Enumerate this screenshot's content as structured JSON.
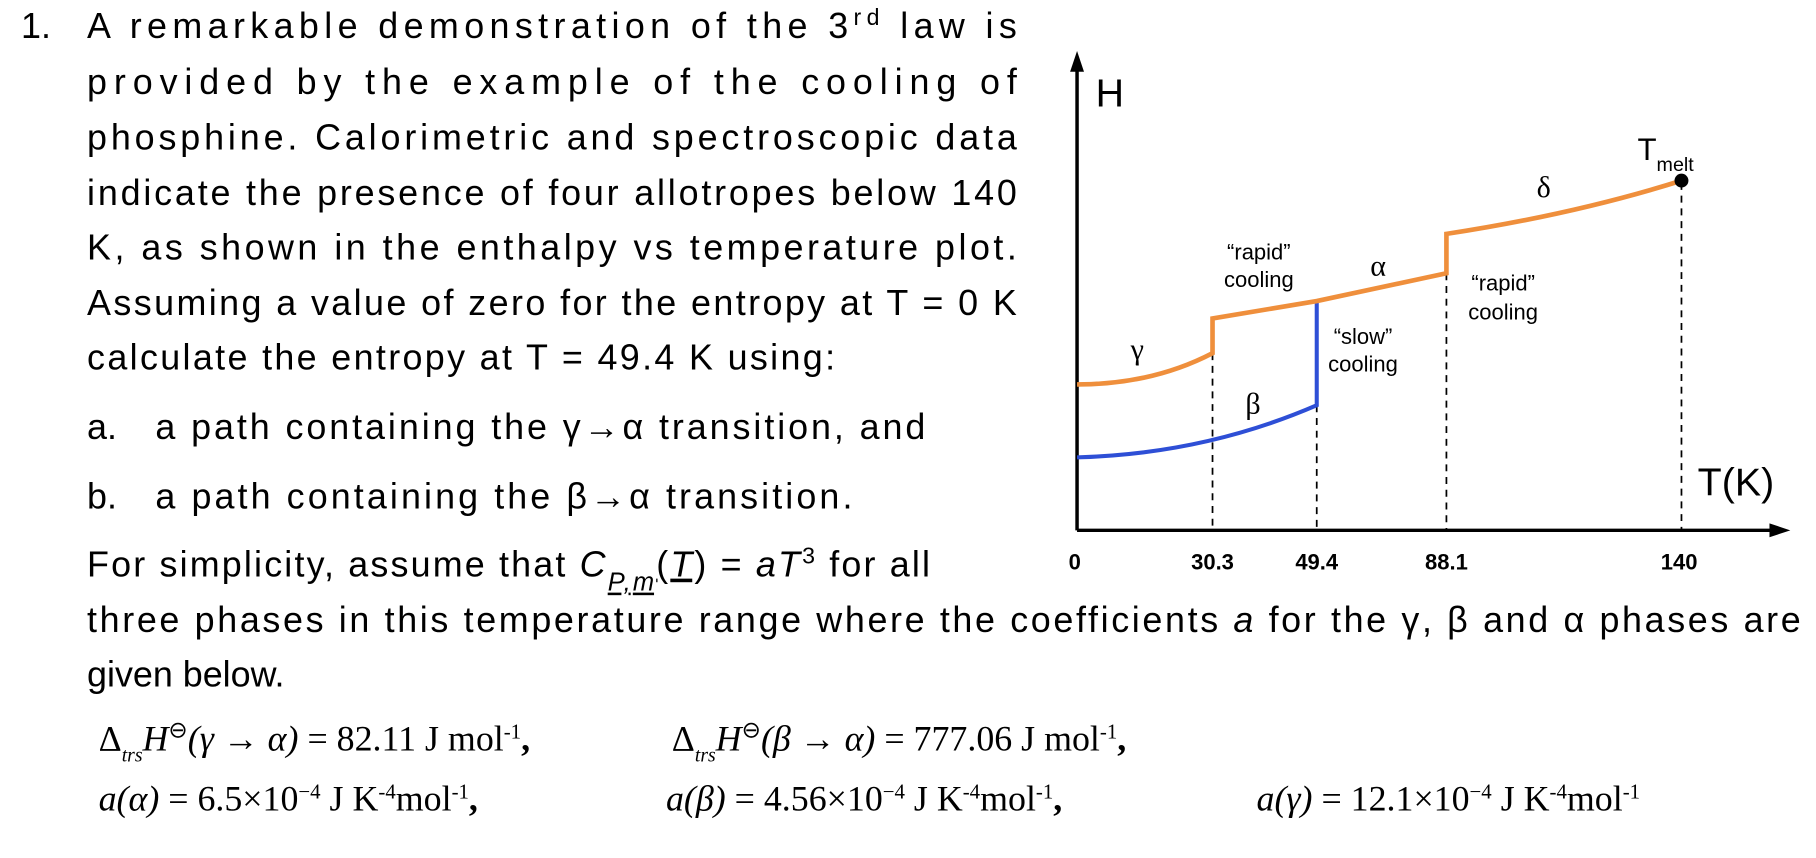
{
  "problem": {
    "number": "1.",
    "intro": {
      "first_before": "A remarkable demonstration of the 3",
      "first_sup": "rd",
      "first_after": " law is",
      "lines": [
        "provided by the example of the cooling of",
        "phosphine. Calorimetric and spectroscopic data",
        "indicate the presence of four allotropes below 140",
        "K, as shown in the enthalpy vs temperature plot.",
        "Assuming a value of zero for the entropy at T = 0 K",
        "calculate the entropy at T = 49.4 K using:"
      ]
    },
    "parts": [
      {
        "label": "a.",
        "text": "a path containing the γ→α transition, and"
      },
      {
        "label": "b.",
        "text": "a path containing the β→α transition."
      }
    ],
    "assumption": {
      "start": "For simplicity, assume that ",
      "c": "C",
      "c_sub": "P,m",
      "open": "(",
      "t": "T",
      "close_eq": ") = ",
      "a": "a",
      "t2": "T",
      "exp": "3",
      "end": " for all",
      "line2_start": "three phases in this temperature range where the coefficients ",
      "line2_a": "a",
      "line2_end": " for the γ, β and α phases are",
      "line3": "given below."
    },
    "equations": [
      {
        "delta": "Δ",
        "sub": "trs",
        "h": "H",
        "sup": "⊖",
        "arg": "(γ → α)",
        "rhs": " = 82.11 J mol",
        "exp": "-1",
        "tail": ","
      },
      {
        "delta": "Δ",
        "sub": "trs",
        "h": "H",
        "sup": "⊖",
        "arg": "(β → α)",
        "rhs": " = 777.06 J mol",
        "exp": "-1",
        "tail": ","
      }
    ],
    "coefficients": [
      {
        "lhs": "a(α)",
        "value": " = 6.5×10",
        "exp": "−4",
        "unit": " J K",
        "unit_exp": "-4",
        "unit2": "mol",
        "unit2_exp": "-1",
        "tail": ","
      },
      {
        "lhs": "a(β)",
        "value": " = 4.56×10",
        "exp": "−4",
        "unit": " J K",
        "unit_exp": "-4",
        "unit2": "mol",
        "unit2_exp": "-1",
        "tail": ","
      },
      {
        "lhs": "a(γ)",
        "value": " = 12.1×10",
        "exp": "−4",
        "unit": " J K",
        "unit_exp": "-4",
        "unit2": "mol",
        "unit2_exp": "-1",
        "tail": ""
      }
    ],
    "figure": {
      "y_label": "H",
      "x_label": "T(K)",
      "x_ticks": [
        "0",
        "30.3",
        "49.4",
        "88.1",
        "140"
      ],
      "melt_t": "T",
      "melt_sub": "melt",
      "phases": {
        "gamma": "γ",
        "beta": "β",
        "alpha": "α",
        "delta": "δ"
      },
      "notes": [
        {
          "line1": "“rapid”",
          "line2": "cooling"
        },
        {
          "line1": "“slow”",
          "line2": "cooling"
        },
        {
          "line1": "“rapid”",
          "line2": "cooling"
        }
      ]
    }
  }
}
